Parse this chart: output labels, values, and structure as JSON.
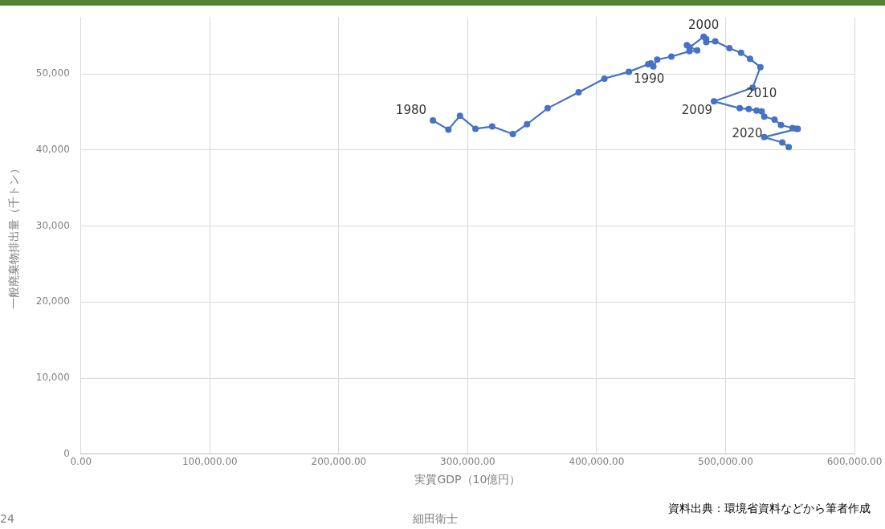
{
  "chart_data": {
    "type": "scatter",
    "xlabel": "実質GDP（10億円）",
    "ylabel": "一般廃棄物排出量（千トン）",
    "xlim": [
      0,
      600000
    ],
    "ylim": [
      0,
      57500
    ],
    "xticks": [
      {
        "value": 0,
        "label": "0.00"
      },
      {
        "value": 100000,
        "label": "100,000.00"
      },
      {
        "value": 200000,
        "label": "200,000.00"
      },
      {
        "value": 300000,
        "label": "300,000.00"
      },
      {
        "value": 400000,
        "label": "400,000.00"
      },
      {
        "value": 500000,
        "label": "500,000.00"
      },
      {
        "value": 600000,
        "label": "600,000.00"
      }
    ],
    "yticks": [
      0,
      {
        "value": 10000,
        "label": "10,000"
      },
      {
        "value": 20000,
        "label": "20,000"
      },
      {
        "value": 30000,
        "label": "30,000"
      },
      {
        "value": 40000,
        "label": "40,000"
      },
      {
        "value": 50000,
        "label": "50,000"
      }
    ],
    "grid": true,
    "marker": "circle",
    "line_style": "solid",
    "series": [
      {
        "type": "line",
        "color": "#4472c4",
        "x": [
          273000,
          285000,
          294000,
          306000,
          319000,
          335000,
          346000,
          362000,
          386000,
          406000,
          425000,
          440000,
          442000,
          444000,
          447000,
          458000,
          472000,
          478000,
          470000,
          472000,
          483000,
          485000,
          485000,
          492000,
          503000,
          512000,
          519000,
          527000,
          521000,
          491000,
          511000,
          518000,
          524000,
          528000,
          530000,
          538000,
          543000,
          552000,
          555000,
          556000,
          530000,
          544000,
          549000
        ],
        "values": [
          43900,
          42700,
          44500,
          42800,
          43100,
          42100,
          43400,
          45500,
          47600,
          49400,
          50300,
          51300,
          51400,
          51000,
          51900,
          52300,
          53000,
          53100,
          53800,
          53500,
          54900,
          54600,
          54200,
          54300,
          53400,
          52800,
          52000,
          50900,
          48200,
          46400,
          45500,
          45400,
          45200,
          45100,
          44400,
          44000,
          43300,
          42900,
          42800,
          42800,
          41700,
          41000,
          40400
        ]
      }
    ],
    "annotations": [
      {
        "text": "1980",
        "x": 273000,
        "y": 43900
      },
      {
        "text": "1990",
        "x": 425000,
        "y": 50300
      },
      {
        "text": "2000",
        "x": 483000,
        "y": 54900
      },
      {
        "text": "2009",
        "x": 491000,
        "y": 46400
      },
      {
        "text": "2010",
        "x": 511000,
        "y": 45500
      },
      {
        "text": "2020",
        "x": 530000,
        "y": 41700
      },
      "細田衛士",
      "資料出典：環境省資料などから筆者作成",
      "24"
    ]
  }
}
